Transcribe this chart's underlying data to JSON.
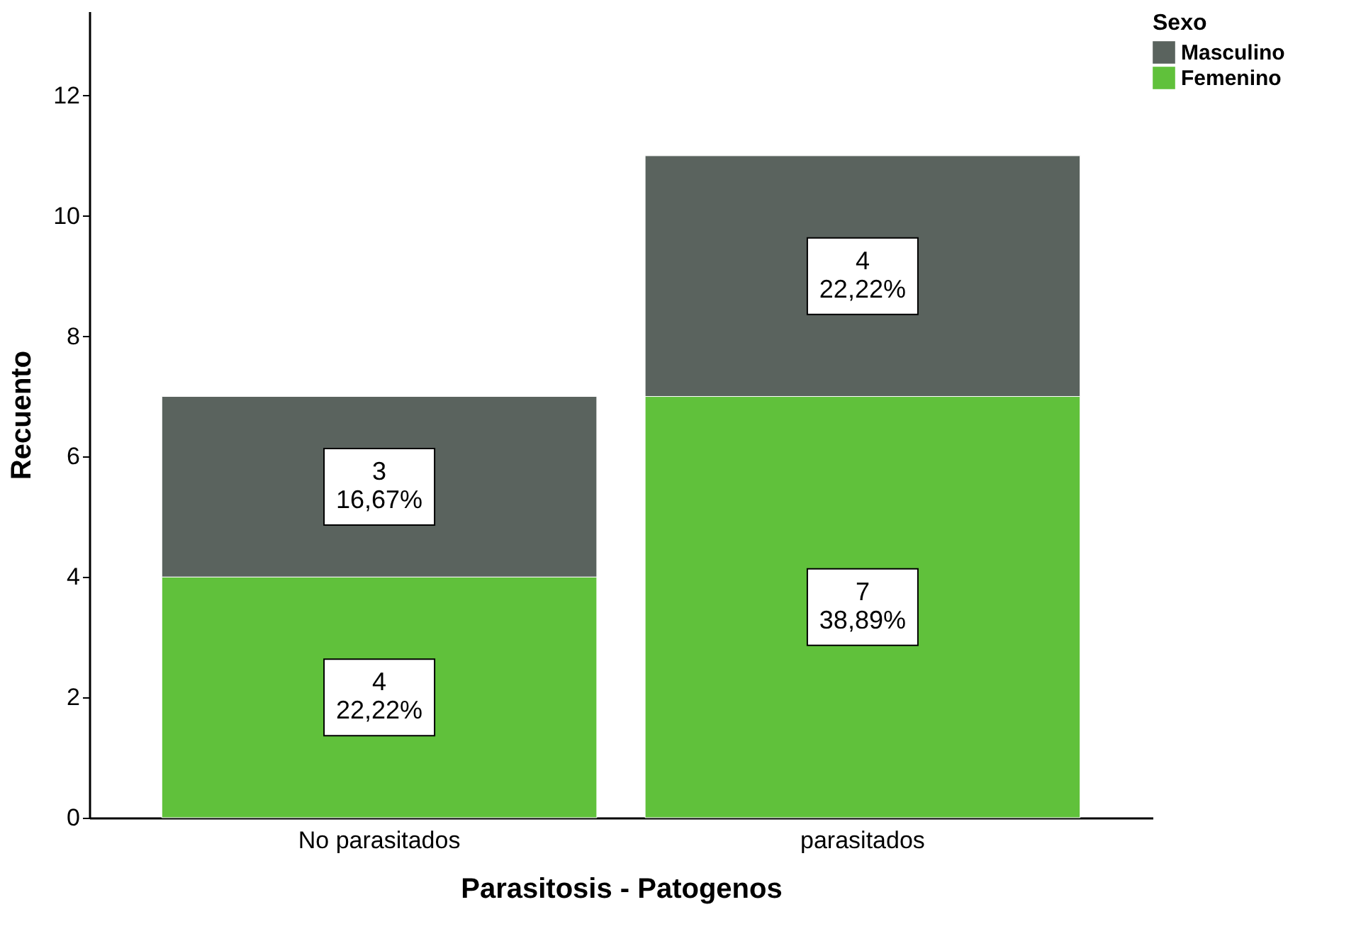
{
  "chart_data": {
    "type": "bar",
    "stacked": true,
    "xlabel": "Parasitosis - Patogenos",
    "ylabel": "Recuento",
    "legend_title": "Sexo",
    "legend": "top right",
    "categories": [
      "No parasitados",
      "parasitados"
    ],
    "series": [
      {
        "name": "Femenino",
        "color": "#60c13b",
        "values": [
          4,
          7
        ],
        "value_labels": [
          "4\n22,22%",
          "7\n38,89%"
        ]
      },
      {
        "name": "Masculino",
        "color": "#5a635e",
        "values": [
          3,
          4
        ],
        "value_labels": [
          "3\n16,67%",
          "4\n22,22%"
        ]
      }
    ],
    "ylim": [
      0,
      13.4
    ],
    "yticks": [
      0,
      2,
      4,
      6,
      8,
      10,
      12
    ]
  }
}
